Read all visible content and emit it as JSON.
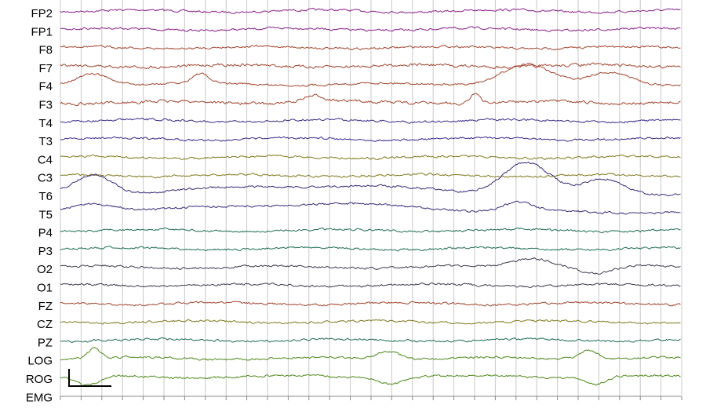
{
  "channels": [
    {
      "label": "FP2",
      "color": "#8a1f8a"
    },
    {
      "label": "FP1",
      "color": "#8a1f8a"
    },
    {
      "label": "F8",
      "color": "#a3442e"
    },
    {
      "label": "F7",
      "color": "#a3442e"
    },
    {
      "label": "F4",
      "color": "#a3442e"
    },
    {
      "label": "F3",
      "color": "#a3442e"
    },
    {
      "label": "T4",
      "color": "#3b2a8c"
    },
    {
      "label": "T3",
      "color": "#3b2a8c"
    },
    {
      "label": "C4",
      "color": "#7d7a1c"
    },
    {
      "label": "C3",
      "color": "#7d7a1c"
    },
    {
      "label": "T6",
      "color": "#3b2a7c"
    },
    {
      "label": "T5",
      "color": "#3b2a7c"
    },
    {
      "label": "P4",
      "color": "#1f6e4e"
    },
    {
      "label": "P3",
      "color": "#1f6e4e"
    },
    {
      "label": "O2",
      "color": "#3e3a4e"
    },
    {
      "label": "O1",
      "color": "#3e3a4e"
    },
    {
      "label": "FZ",
      "color": "#a3442e"
    },
    {
      "label": "CZ",
      "color": "#7d7a1c"
    },
    {
      "label": "PZ",
      "color": "#1f6e4e"
    },
    {
      "label": "LOG",
      "color": "#4e8a1c"
    },
    {
      "label": "ROG",
      "color": "#4e8a1c"
    },
    {
      "label": "EMG"
    }
  ]
}
